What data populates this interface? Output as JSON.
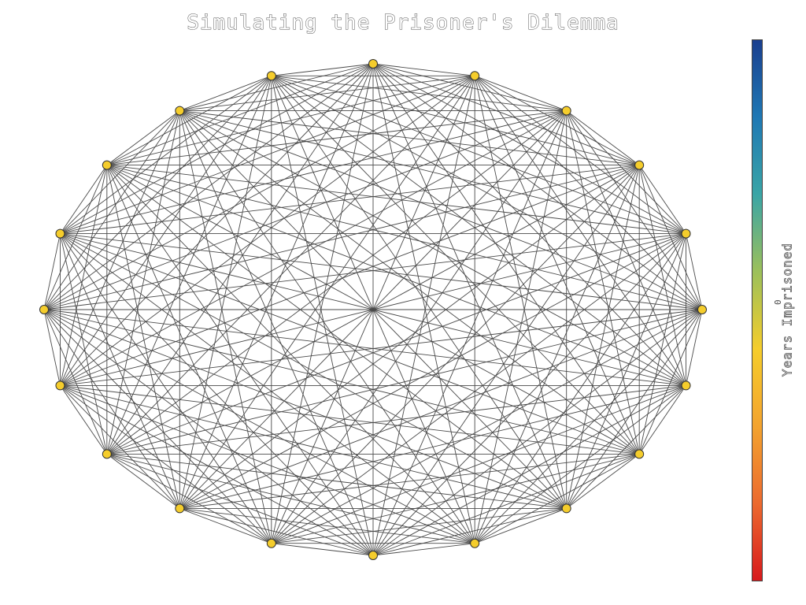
{
  "title": "Simulating the Prisoner's Dilemma",
  "graph": {
    "node_count": 20,
    "topology": "complete",
    "node_color": "#f5cd2c",
    "node_outline": "#333333",
    "edge_color": "#4a4a4a",
    "node_value": 0
  },
  "colorbar": {
    "label": "Years Imprisoned",
    "tick_label": "0",
    "colormap": "RdYlBu",
    "stops": [
      "#d7191c",
      "#ec6a2f",
      "#f3a32e",
      "#f5cd2c",
      "#9cc05a",
      "#3aa5a6",
      "#1f78b4",
      "#1a3f8f"
    ]
  }
}
